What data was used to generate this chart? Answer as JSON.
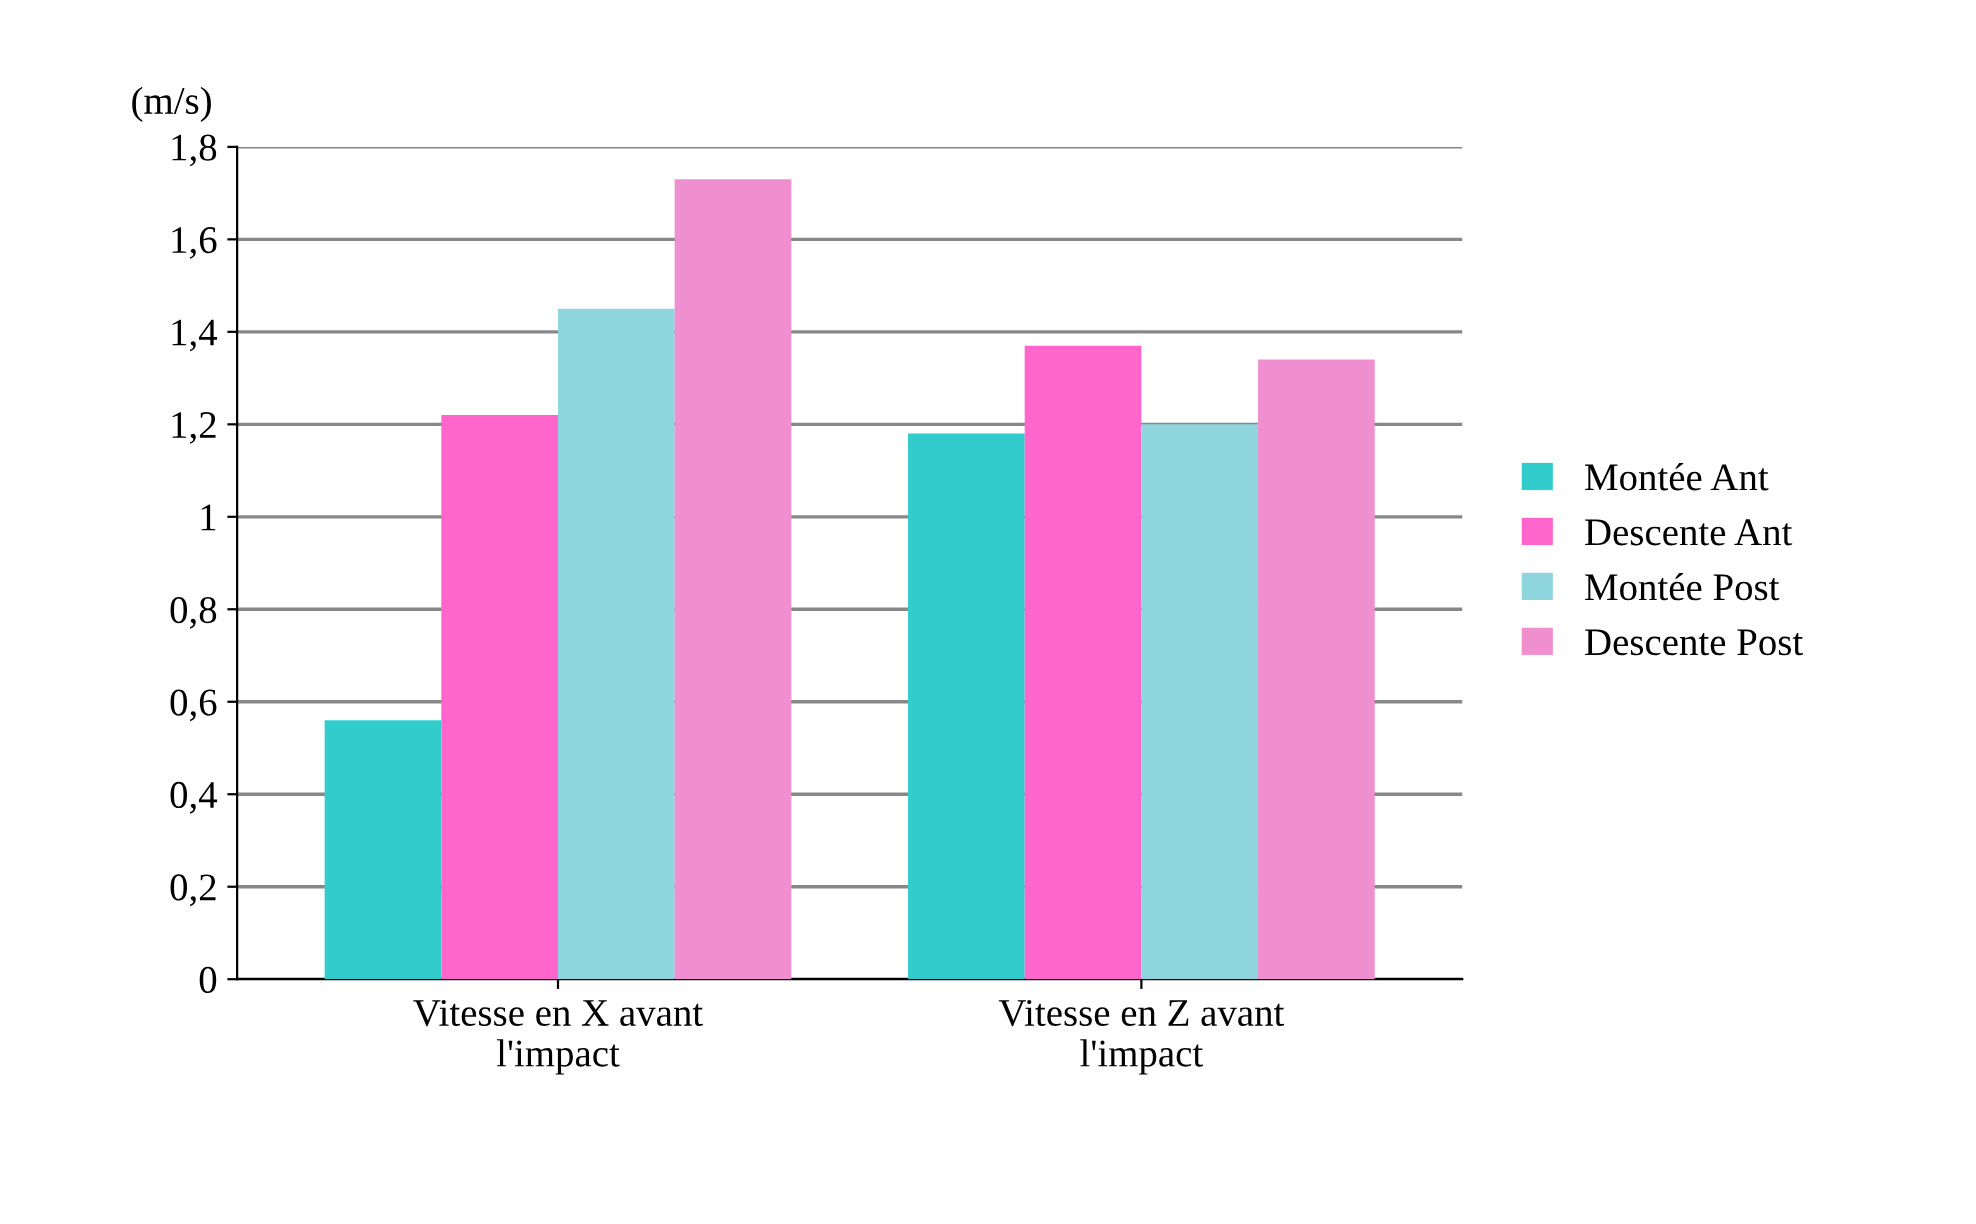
{
  "chart_data": {
    "type": "bar",
    "ylabel": "(m/s)",
    "categories": [
      "Vitesse en X avant\nl'impact",
      "Vitesse en Z avant\nl'impact"
    ],
    "series": [
      {
        "name": "Montée Ant",
        "color": "#33cccc",
        "values": [
          0.56,
          1.18
        ]
      },
      {
        "name": "Descente Ant",
        "color": "#ff66cc",
        "values": [
          1.22,
          1.37
        ]
      },
      {
        "name": "Montée Post",
        "color": "#8fd6dc",
        "values": [
          1.45,
          1.2
        ]
      },
      {
        "name": "Descente Post",
        "color": "#f08fd0",
        "values": [
          1.73,
          1.34
        ]
      }
    ],
    "ylim": [
      0,
      1.8
    ],
    "yticks": [
      0,
      {
        "value": 0.2,
        "label": "0,2"
      },
      {
        "value": 0.4,
        "label": "0,4"
      },
      {
        "value": 0.6,
        "label": "0,6"
      },
      {
        "value": 0.8,
        "label": "0,8"
      },
      1,
      {
        "value": 1.2,
        "label": "1,2"
      },
      {
        "value": 1.4,
        "label": "1,4"
      },
      {
        "value": 1.6,
        "label": "1,6"
      },
      {
        "value": 1.8,
        "label": "1,8"
      }
    ],
    "grid": "y",
    "legend": "right"
  }
}
